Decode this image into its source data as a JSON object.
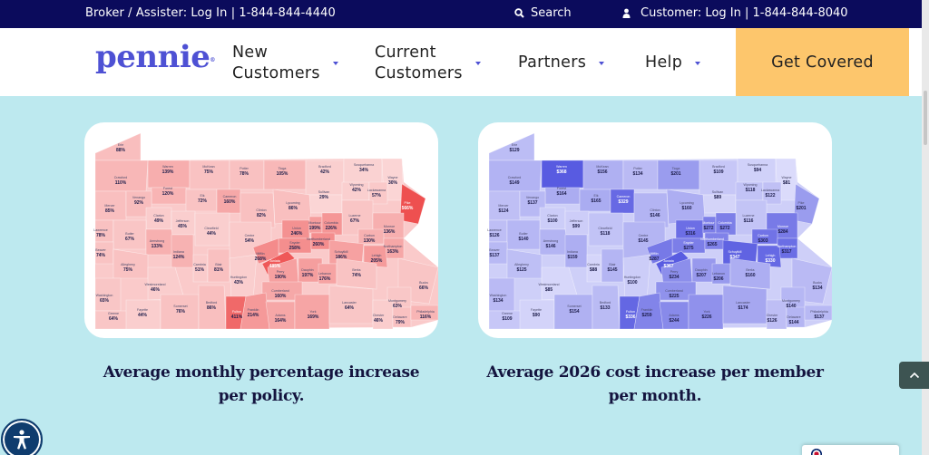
{
  "topbar": {
    "broker_text": "Broker / Assister:  Log In | 1-844-844-4440",
    "search_label": "Search",
    "search_icon": "search-icon",
    "customer_text": "Customer: Log In | 1-844-844-8040",
    "customer_icon": "user-icon",
    "background": "#0b0b5c"
  },
  "nav": {
    "logo": "pennie",
    "items": [
      {
        "line1": "New",
        "line2": "Customers"
      },
      {
        "line1": "Current",
        "line2": "Customers"
      },
      {
        "label": "Partners"
      },
      {
        "label": "Help"
      }
    ],
    "cta_label": "Get Covered",
    "cta_color": "#fdc66c",
    "accent": "#4e51d4"
  },
  "captions": {
    "left": "Average monthly percentage increase per policy.",
    "right": "Average 2026 cost increase per member per month."
  },
  "chart_data": [
    {
      "type": "heatmap",
      "title": "Average monthly percentage increase per policy.",
      "region": "Pennsylvania counties",
      "color_scale": [
        "#fbd8d8",
        "#ee5050"
      ],
      "counties": [
        {
          "name": "Erie",
          "value": "88%"
        },
        {
          "name": "Warren",
          "value": "139%"
        },
        {
          "name": "McKean",
          "value": "75%"
        },
        {
          "name": "Potter",
          "value": "78%"
        },
        {
          "name": "Tioga",
          "value": "105%"
        },
        {
          "name": "Bradford",
          "value": "42%"
        },
        {
          "name": "Susquehanna",
          "value": "34%"
        },
        {
          "name": "Wayne",
          "value": "30%"
        },
        {
          "name": "Crawford",
          "value": "110%"
        },
        {
          "name": "Forest",
          "value": "120%"
        },
        {
          "name": "Elk",
          "value": "72%"
        },
        {
          "name": "Cameron",
          "value": "160%"
        },
        {
          "name": "Sullivan",
          "value": "29%"
        },
        {
          "name": "Wyoming",
          "value": "42%"
        },
        {
          "name": "Lackawanna",
          "value": "57%"
        },
        {
          "name": "Pike",
          "value": "566%"
        },
        {
          "name": "Mercer",
          "value": "85%"
        },
        {
          "name": "Venango",
          "value": "92%"
        },
        {
          "name": "Clinton",
          "value": "82%"
        },
        {
          "name": "Lycoming",
          "value": "86%"
        },
        {
          "name": "Luzerne",
          "value": "67%"
        },
        {
          "name": "Monroe",
          "value": "136%"
        },
        {
          "name": "Clarion",
          "value": "49%"
        },
        {
          "name": "Jefferson",
          "value": "45%"
        },
        {
          "name": "Lawrence",
          "value": "78%"
        },
        {
          "name": "Butler",
          "value": "67%"
        },
        {
          "name": "Clearfield",
          "value": "44%"
        },
        {
          "name": "Centre",
          "value": "54%"
        },
        {
          "name": "Union",
          "value": "246%"
        },
        {
          "name": "Montour",
          "value": "199%"
        },
        {
          "name": "Columbia",
          "value": "226%"
        },
        {
          "name": "Carbon",
          "value": "130%"
        },
        {
          "name": "Beaver",
          "value": "74%"
        },
        {
          "name": "Armstrong",
          "value": "133%"
        },
        {
          "name": "Indiana",
          "value": "124%"
        },
        {
          "name": "Snyder",
          "value": "258%"
        },
        {
          "name": "Northumberland",
          "value": "260%"
        },
        {
          "name": "Schuylkill",
          "value": "186%"
        },
        {
          "name": "Northampton",
          "value": "163%"
        },
        {
          "name": "Lehigh",
          "value": "205%"
        },
        {
          "name": "Allegheny",
          "value": "75%"
        },
        {
          "name": "Cambria",
          "value": "51%"
        },
        {
          "name": "Blair",
          "value": "81%"
        },
        {
          "name": "Mifflin",
          "value": "268%"
        },
        {
          "name": "Juniata",
          "value": "485%"
        },
        {
          "name": "Huntingdon",
          "value": "43%"
        },
        {
          "name": "Perry",
          "value": "190%"
        },
        {
          "name": "Dauphin",
          "value": "197%"
        },
        {
          "name": "Lebanon",
          "value": "176%"
        },
        {
          "name": "Berks",
          "value": "74%"
        },
        {
          "name": "Bucks",
          "value": "66%"
        },
        {
          "name": "Westmoreland",
          "value": "46%"
        },
        {
          "name": "Washington",
          "value": "65%"
        },
        {
          "name": "Montgomery",
          "value": "63%"
        },
        {
          "name": "Cumberland",
          "value": "160%"
        },
        {
          "name": "Greene",
          "value": "64%"
        },
        {
          "name": "Fayette",
          "value": "44%"
        },
        {
          "name": "Somerset",
          "value": "76%"
        },
        {
          "name": "Bedford",
          "value": "86%"
        },
        {
          "name": "Fulton",
          "value": "411%"
        },
        {
          "name": "Franklin",
          "value": "214%"
        },
        {
          "name": "Adams",
          "value": "164%"
        },
        {
          "name": "York",
          "value": "169%"
        },
        {
          "name": "Lancaster",
          "value": "64%"
        },
        {
          "name": "Chester",
          "value": "46%"
        },
        {
          "name": "Delaware",
          "value": "79%"
        },
        {
          "name": "Philadelphia",
          "value": "116%"
        }
      ]
    },
    {
      "type": "heatmap",
      "title": "Average 2026 cost increase per member per month.",
      "region": "Pennsylvania counties",
      "color_scale": [
        "#dcdcfb",
        "#5457e0"
      ],
      "counties": [
        {
          "name": "Erie",
          "value": "$129"
        },
        {
          "name": "Warren",
          "value": "$368"
        },
        {
          "name": "McKean",
          "value": "$156"
        },
        {
          "name": "Potter",
          "value": "$134"
        },
        {
          "name": "Tioga",
          "value": "$201"
        },
        {
          "name": "Bradford",
          "value": "$109"
        },
        {
          "name": "Susquehanna",
          "value": "$94"
        },
        {
          "name": "Wayne",
          "value": "$81"
        },
        {
          "name": "Crawford",
          "value": "$149"
        },
        {
          "name": "Forest",
          "value": "$164"
        },
        {
          "name": "Elk",
          "value": "$165"
        },
        {
          "name": "Cameron",
          "value": "$329"
        },
        {
          "name": "Sullivan",
          "value": "$89"
        },
        {
          "name": "Wyoming",
          "value": "$118"
        },
        {
          "name": "Lackawanna",
          "value": "$122"
        },
        {
          "name": "Pike",
          "value": "$201"
        },
        {
          "name": "Mercer",
          "value": "$124"
        },
        {
          "name": "Venango",
          "value": "$137"
        },
        {
          "name": "Clinton",
          "value": "$146"
        },
        {
          "name": "Lycoming",
          "value": "$160"
        },
        {
          "name": "Luzerne",
          "value": "$116"
        },
        {
          "name": "Monroe",
          "value": "$284"
        },
        {
          "name": "Clarion",
          "value": "$100"
        },
        {
          "name": "Jefferson",
          "value": "$99"
        },
        {
          "name": "Lawrence",
          "value": "$126"
        },
        {
          "name": "Butler",
          "value": "$140"
        },
        {
          "name": "Clearfield",
          "value": "$118"
        },
        {
          "name": "Centre",
          "value": "$145"
        },
        {
          "name": "Union",
          "value": "$316"
        },
        {
          "name": "Montour",
          "value": "$272"
        },
        {
          "name": "Columbia",
          "value": "$272"
        },
        {
          "name": "Carbon",
          "value": "$303"
        },
        {
          "name": "Beaver",
          "value": "$137"
        },
        {
          "name": "Armstrong",
          "value": "$146"
        },
        {
          "name": "Indiana",
          "value": "$159"
        },
        {
          "name": "Snyder",
          "value": "$275"
        },
        {
          "name": "Northumberland",
          "value": "$265"
        },
        {
          "name": "Schuylkill",
          "value": "$347"
        },
        {
          "name": "Northampton",
          "value": "$317"
        },
        {
          "name": "Lehigh",
          "value": "$330"
        },
        {
          "name": "Allegheny",
          "value": "$125"
        },
        {
          "name": "Cambria",
          "value": "$88"
        },
        {
          "name": "Blair",
          "value": "$145"
        },
        {
          "name": "Mifflin",
          "value": "$287"
        },
        {
          "name": "Juniata",
          "value": "$367"
        },
        {
          "name": "Huntingdon",
          "value": "$100"
        },
        {
          "name": "Perry",
          "value": "$234"
        },
        {
          "name": "Dauphin",
          "value": "$207"
        },
        {
          "name": "Lebanon",
          "value": "$206"
        },
        {
          "name": "Berks",
          "value": "$160"
        },
        {
          "name": "Bucks",
          "value": "$134"
        },
        {
          "name": "Westmoreland",
          "value": "$85"
        },
        {
          "name": "Washington",
          "value": "$134"
        },
        {
          "name": "Montgomery",
          "value": "$140"
        },
        {
          "name": "Cumberland",
          "value": "$225"
        },
        {
          "name": "Greene",
          "value": "$109"
        },
        {
          "name": "Fayette",
          "value": "$90"
        },
        {
          "name": "Somerset",
          "value": "$154"
        },
        {
          "name": "Bedford",
          "value": "$133"
        },
        {
          "name": "Fulton",
          "value": "$336"
        },
        {
          "name": "Franklin",
          "value": "$259"
        },
        {
          "name": "Adams",
          "value": "$244"
        },
        {
          "name": "York",
          "value": "$226"
        },
        {
          "name": "Lancaster",
          "value": "$174"
        },
        {
          "name": "Chester",
          "value": "$126"
        },
        {
          "name": "Delaware",
          "value": "$144"
        },
        {
          "name": "Philadelphia",
          "value": "$137"
        }
      ]
    }
  ],
  "widgets": {
    "accessibility_icon": "accessibility-icon",
    "back_to_top_icon": "chevron-up-icon",
    "language_flag": "uk-flag-icon"
  }
}
